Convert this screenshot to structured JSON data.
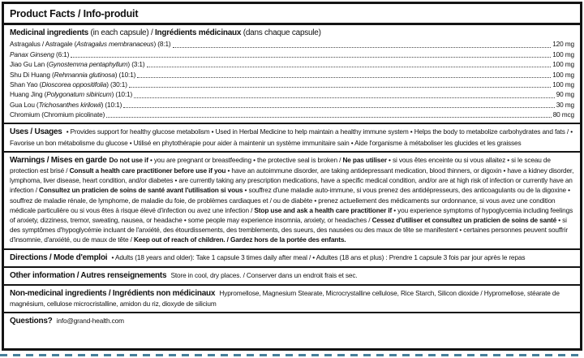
{
  "colors": {
    "border": "#141414",
    "cut_line": "#47809c",
    "text": "#121212",
    "background": "#ffffff"
  },
  "title": "Product Facts / Info-produit",
  "medicinal": {
    "header": {
      "en_bold": "Medicinal ingredients",
      "en_rest": " (in each capsule) / ",
      "fr_bold": "Ingrédients médicinaux",
      "fr_rest": " (dans chaque capsule)"
    },
    "ingredients": [
      {
        "prefix": "Astragalus / Astragale (",
        "latin": "Astragalus membranaceus",
        "suffix": ") (8:1)",
        "amount": "120 mg"
      },
      {
        "prefix": "",
        "latin": "Panax Ginseng",
        "suffix": " (6:1)",
        "amount": "100 mg"
      },
      {
        "prefix": "Jiao Gu Lan (",
        "latin": "Gynostemma pentaphyllum",
        "suffix": ") (3:1)",
        "amount": "100 mg"
      },
      {
        "prefix": "Shu Di Huang (",
        "latin": "Rehmannia glutinosa",
        "suffix": ") (10:1)",
        "amount": "100 mg"
      },
      {
        "prefix": "Shan Yao (",
        "latin": "Dioscorea oppositifolia",
        "suffix": ") (30:1)",
        "amount": "100 mg"
      },
      {
        "prefix": "Huang Jing (",
        "latin": "Polygonatum sibiricum",
        "suffix": ") (10:1)",
        "amount": "90 mg"
      },
      {
        "prefix": "Gua Lou (",
        "latin": "Trichosanthes kirilowii",
        "suffix": ") (10:1)",
        "amount": "30 mg"
      },
      {
        "prefix": "Chromium (Chromium picolinate)",
        "latin": "",
        "suffix": "",
        "amount": "80 mcg"
      }
    ]
  },
  "uses": {
    "header": "Uses / Usages",
    "body": " • Provides support for healthy glucose metabolism  • Used in Herbal Medicine to help maintain a healthy immune system  • Helps the body to metabolize carbohydrates and fats /  • Favorise un bon métabolisme du glucose  • Utilisé en phytothérapie pour aider à maintenir un système immunitaire sain  • Aide l'organisme à métaboliser les glucides et les graisses"
  },
  "warnings": {
    "header": "Warnings / Mises en garde",
    "parts": [
      {
        "style": "bold",
        "text": "Do not use if"
      },
      {
        "style": "regular",
        "text": " • you are pregnant or breastfeeding  • the protective seal is broken / "
      },
      {
        "style": "bold",
        "text": "Ne pas utiliser"
      },
      {
        "style": "regular",
        "text": " • si vous êtes enceinte ou si vous allaitez  • si le sceau de protection est brisé / "
      },
      {
        "style": "bold",
        "text": "Consult a health care practitioner before use if you"
      },
      {
        "style": "regular",
        "text": " • have an autoimmune disorder, are taking antidepressant medication, blood thinners, or digoxin  • have a kidney disorder, lymphoma, liver disease, heart condition, and/or diabetes  • are currently taking any prescription medications, have a specific medical condition, and/or are at high risk of infection or currently have an infection / "
      },
      {
        "style": "bold",
        "text": "Consultez un praticien de soins de santé avant l'utilisation si vous"
      },
      {
        "style": "regular",
        "text": " • souffrez d'une maladie auto-immune, si vous prenez des antidépresseurs, des anticoagulants ou de la digoxine  • souffrez de maladie rénale, de lymphome, de maladie du foie, de problèmes cardiaques et / ou de diabète  • prenez actuellement des médicaments sur ordonnance, si vous avez une condition médicale particulière ou si vous êtes à risque élevé d'infection ou avez une infection / "
      },
      {
        "style": "bold",
        "text": "Stop use and ask a health care practitioner if"
      },
      {
        "style": "regular",
        "text": " • you experience symptoms of hypoglycemia including feelings of anxiety, dizziness, tremor, sweating, nausea, or headache  • some people may experience insomnia, anxiety, or headaches / "
      },
      {
        "style": "bold",
        "text": "Cessez d'utiliser et consultez un praticien de soins de santé"
      },
      {
        "style": "regular",
        "text": " • si des symptômes d'hypoglycémie incluant de l'anxiété, des étourdissements, des tremblements, des sueurs, des nausées ou des maux de tête se manifestent  • certaines personnes peuvent souffrir d'insomnie, d'anxiété, ou de maux de tête / "
      },
      {
        "style": "bold",
        "text": "Keep out of reach of children. / Gardez hors de la portée des enfants."
      }
    ]
  },
  "directions": {
    "header": "Directions / Mode d'emploi",
    "body": " • Adults (18 years and older): Take 1 capsule 3 times daily after meal /  • Adultes (18 ans et plus) : Prendre 1 capsule 3 fois par jour après le repas"
  },
  "other_information": {
    "header": "Other information / Autres renseignements",
    "body": " Store in cool, dry places. / Conserver dans un endroit frais et sec."
  },
  "non_medicinal": {
    "header": "Non-medicinal ingredients / Ingrédients non médicinaux",
    "body": " Hypromellose, Magnesium Stearate, Microcrystalline cellulose, Rice Starch, Silicon dioxide / Hypromellose, stéarate de magnésium, cellulose microcristalline, amidon du riz, dioxyde de silicium"
  },
  "questions": {
    "header": "Questions?",
    "body": " info@grand-health.com"
  }
}
